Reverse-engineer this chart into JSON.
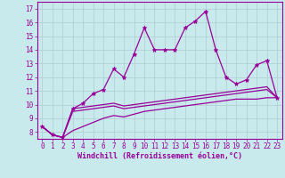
{
  "x_values": [
    0,
    1,
    2,
    3,
    4,
    5,
    6,
    7,
    8,
    9,
    10,
    11,
    12,
    13,
    14,
    15,
    16,
    17,
    18,
    19,
    20,
    21,
    22,
    23
  ],
  "line1": [
    8.4,
    7.8,
    7.6,
    9.7,
    10.1,
    10.8,
    11.1,
    12.6,
    12.0,
    13.7,
    15.6,
    14.0,
    14.0,
    14.0,
    15.6,
    16.1,
    16.8,
    14.0,
    12.0,
    11.5,
    11.8,
    12.9,
    13.2,
    10.5
  ],
  "line2": [
    8.4,
    7.8,
    7.6,
    9.7,
    9.8,
    9.9,
    10.0,
    10.1,
    9.9,
    10.0,
    10.1,
    10.2,
    10.3,
    10.4,
    10.5,
    10.6,
    10.7,
    10.8,
    10.9,
    11.0,
    11.1,
    11.2,
    11.3,
    10.5
  ],
  "line3": [
    8.4,
    7.8,
    7.6,
    9.5,
    9.6,
    9.7,
    9.8,
    9.9,
    9.7,
    9.8,
    9.9,
    10.0,
    10.1,
    10.2,
    10.3,
    10.4,
    10.5,
    10.6,
    10.7,
    10.8,
    10.9,
    11.0,
    11.1,
    10.5
  ],
  "line4": [
    8.4,
    7.8,
    7.6,
    8.1,
    8.4,
    8.7,
    9.0,
    9.2,
    9.1,
    9.3,
    9.5,
    9.6,
    9.7,
    9.8,
    9.9,
    10.0,
    10.1,
    10.2,
    10.3,
    10.4,
    10.4,
    10.4,
    10.5,
    10.5
  ],
  "color": "#990099",
  "bg_color": "#c8eaed",
  "xlabel": "Windchill (Refroidissement éolien,°C)",
  "ylim": [
    7.5,
    17.5
  ],
  "xlim": [
    -0.5,
    23.5
  ],
  "yticks": [
    8,
    9,
    10,
    11,
    12,
    13,
    14,
    15,
    16,
    17
  ],
  "xticks": [
    0,
    1,
    2,
    3,
    4,
    5,
    6,
    7,
    8,
    9,
    10,
    11,
    12,
    13,
    14,
    15,
    16,
    17,
    18,
    19,
    20,
    21,
    22,
    23
  ],
  "grid_color": "#b0cdd0",
  "marker": "*",
  "tick_fontsize": 5.5,
  "xlabel_fontsize": 6.0
}
